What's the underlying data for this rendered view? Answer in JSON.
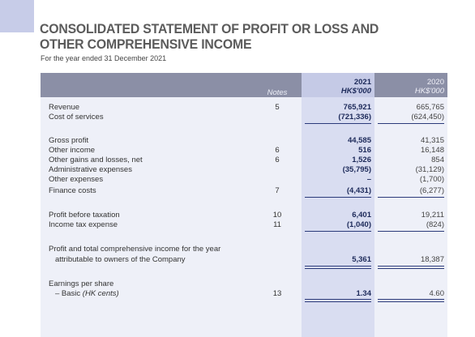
{
  "document": {
    "title_line1": "CONSOLIDATED STATEMENT OF PROFIT OR LOSS AND",
    "title_line2": "OTHER COMPREHENSIVE INCOME",
    "subtitle": "For the year ended 31 December 2021"
  },
  "table": {
    "headers": {
      "notes": "Notes",
      "year_2021": "2021",
      "unit_2021": "HK$'000",
      "year_2020": "2020",
      "unit_2020": "HK$'000"
    },
    "rows": [
      {
        "label": "Revenue",
        "note": "5",
        "v2021": "765,921",
        "v2020": "665,765"
      },
      {
        "label": "Cost of services",
        "note": "",
        "v2021": "(721,336)",
        "v2020": "(624,450)"
      },
      {
        "label": "Gross profit",
        "note": "",
        "v2021": "44,585",
        "v2020": "41,315"
      },
      {
        "label": "Other income",
        "note": "6",
        "v2021": "516",
        "v2020": "16,148"
      },
      {
        "label": "Other gains and losses, net",
        "note": "6",
        "v2021": "1,526",
        "v2020": "854"
      },
      {
        "label": "Administrative expenses",
        "note": "",
        "v2021": "(35,795)",
        "v2020": "(31,129)"
      },
      {
        "label": "Other expenses",
        "note": "",
        "v2021": "–",
        "v2020": "(1,700)"
      },
      {
        "label": "Finance costs",
        "note": "7",
        "v2021": "(4,431)",
        "v2020": "(6,277)"
      },
      {
        "label": "Profit before taxation",
        "note": "10",
        "v2021": "6,401",
        "v2020": "19,211"
      },
      {
        "label": "Income tax expense",
        "note": "11",
        "v2021": "(1,040)",
        "v2020": "(824)"
      },
      {
        "label": "Profit and total comprehensive income for the year",
        "note": "",
        "v2021": "",
        "v2020": ""
      },
      {
        "label": "attributable to owners of the Company",
        "note": "",
        "v2021": "5,361",
        "v2020": "18,387"
      },
      {
        "label": "Earnings per share",
        "note": "",
        "v2021": "",
        "v2020": ""
      },
      {
        "label": "– Basic",
        "label_unit": "(HK cents)",
        "note": "13",
        "v2021": "1.34",
        "v2020": "4.60"
      }
    ]
  }
}
